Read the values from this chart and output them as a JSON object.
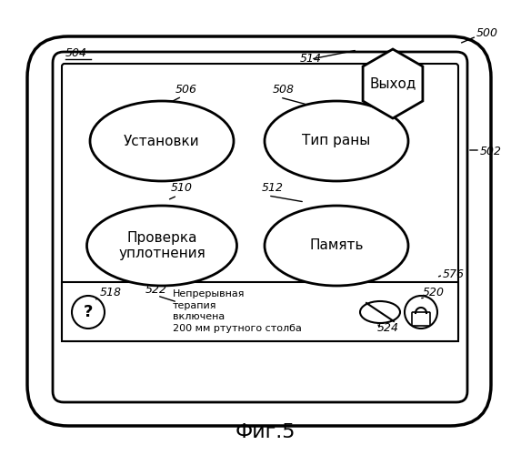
{
  "fig_label": "Фиг.5",
  "outer_box_label": "500",
  "screen_label": "502",
  "display_label": "504",
  "btn_ustanovki_label": "506",
  "btn_tip_rany_label": "508",
  "btn_proverka_label": "510",
  "btn_pamyat_label": "512",
  "exit_label": "514",
  "help_label": "518",
  "lock_label": "520",
  "therapy_label": "522",
  "pill_label": "524",
  "status_bar_label": "576",
  "btn_ustanovki_text": "Установки",
  "btn_tip_rany_text": "Тип раны",
  "btn_proverka_text": "Проверка\nуплотнения",
  "btn_pamyat_text": "Память",
  "exit_text": "Выход",
  "status_text": "Непрерывная\nтерапия\nвключена\n200 мм ртутного столба",
  "help_text": "?",
  "bg_color": "#ffffff",
  "border_color": "#000000"
}
